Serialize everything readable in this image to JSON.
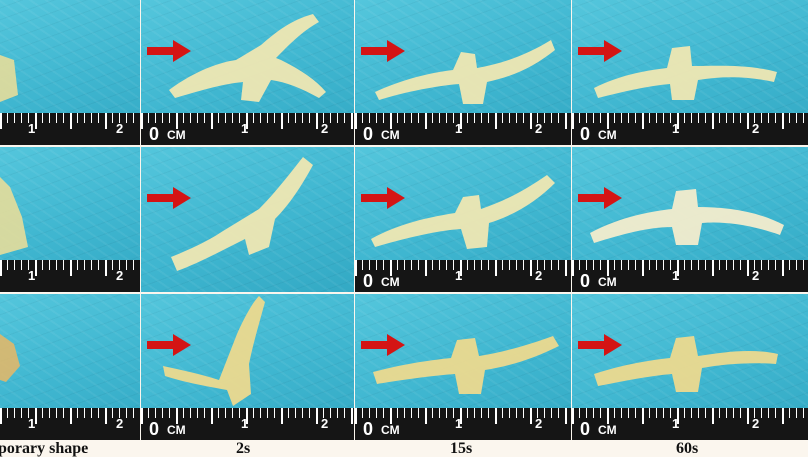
{
  "captions": [
    "porary shape",
    "2s",
    "15s",
    "60s"
  ],
  "ruler": {
    "zero": "0",
    "unit": "CM",
    "one": "1",
    "two": "2"
  },
  "colors": {
    "arrow": "#d41414",
    "background": "#45bcd6",
    "shape": "#efe7b2",
    "ruler": "#151515"
  },
  "icons": {
    "arrow": "right-arrow-icon"
  }
}
